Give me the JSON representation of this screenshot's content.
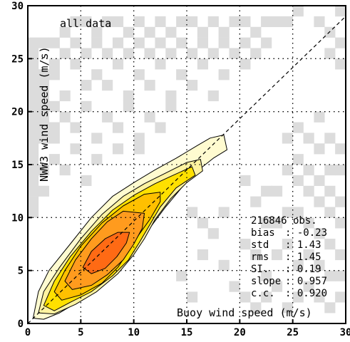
{
  "chart_data": {
    "type": "heatmap",
    "title": "",
    "annotation": "all data",
    "xlabel": "Buoy wind speed (m/s)",
    "ylabel": "NWW3 wind speed (m/s)",
    "xlim": [
      0,
      30
    ],
    "ylim": [
      0,
      30
    ],
    "x_ticks": [
      0,
      5,
      10,
      15,
      20,
      25,
      30
    ],
    "y_ticks": [
      0,
      5,
      10,
      15,
      20,
      25,
      30
    ],
    "grid": true,
    "reference_line": [
      [
        0,
        0
      ],
      [
        30,
        29
      ]
    ],
    "colors": {
      "sparse_cells": "#dcdcdc",
      "levels": [
        "#fffbd0",
        "#fff3a0",
        "#ffe000",
        "#ffc000",
        "#ff9b1e",
        "#ff6a14"
      ]
    },
    "contours": [
      {
        "level": 1,
        "points": [
          [
            0.5,
            0.5
          ],
          [
            1,
            3
          ],
          [
            2,
            5
          ],
          [
            4,
            7.5
          ],
          [
            6,
            10
          ],
          [
            8,
            12
          ],
          [
            10,
            13.3
          ],
          [
            12,
            14.5
          ],
          [
            14,
            15.6
          ],
          [
            16,
            16.8
          ],
          [
            17.2,
            17.5
          ],
          [
            18.5,
            17.8
          ],
          [
            18.8,
            16.4
          ],
          [
            17.5,
            15.6
          ],
          [
            16,
            14.4
          ],
          [
            14.5,
            12.8
          ],
          [
            13,
            11
          ],
          [
            11.5,
            9
          ],
          [
            10.5,
            7.5
          ],
          [
            9,
            5.5
          ],
          [
            7,
            3.5
          ],
          [
            5,
            2.2
          ],
          [
            3,
            1
          ],
          [
            1.5,
            0.4
          ]
        ]
      },
      {
        "level": 2,
        "points": [
          [
            1,
            1
          ],
          [
            1.5,
            3
          ],
          [
            3,
            5.3
          ],
          [
            5,
            8
          ],
          [
            7,
            10.3
          ],
          [
            9,
            12
          ],
          [
            11,
            13.2
          ],
          [
            13,
            14.2
          ],
          [
            15,
            15.2
          ],
          [
            16.3,
            15.5
          ],
          [
            16.5,
            14.4
          ],
          [
            15,
            13.3
          ],
          [
            13.5,
            11.8
          ],
          [
            12,
            9.8
          ],
          [
            11,
            8
          ],
          [
            10,
            6.5
          ],
          [
            8.5,
            4.7
          ],
          [
            6.5,
            3
          ],
          [
            4.5,
            1.8
          ],
          [
            2.5,
            0.9
          ]
        ]
      },
      {
        "level": 3,
        "points": [
          [
            1.5,
            1.7
          ],
          [
            2.5,
            4
          ],
          [
            4,
            6.3
          ],
          [
            6,
            8.7
          ],
          [
            8,
            10.7
          ],
          [
            10,
            12.1
          ],
          [
            12,
            13.2
          ],
          [
            13.5,
            13.9
          ],
          [
            15.5,
            14.8
          ],
          [
            15.8,
            14
          ],
          [
            14,
            12.8
          ],
          [
            12.5,
            11
          ],
          [
            11.5,
            9.3
          ],
          [
            10.5,
            7.6
          ],
          [
            9.5,
            6
          ],
          [
            8,
            4.5
          ],
          [
            6,
            3
          ],
          [
            4,
            2
          ],
          [
            2.5,
            1.2
          ]
        ]
      },
      {
        "level": 4,
        "points": [
          [
            2.5,
            3
          ],
          [
            3.5,
            5
          ],
          [
            5,
            7.3
          ],
          [
            7,
            9.5
          ],
          [
            9,
            11.1
          ],
          [
            11,
            12.2
          ],
          [
            12.5,
            12.4
          ],
          [
            12.5,
            11.5
          ],
          [
            11.5,
            9.8
          ],
          [
            10.5,
            8.4
          ],
          [
            9.5,
            6.8
          ],
          [
            8.5,
            5.3
          ],
          [
            7,
            3.8
          ],
          [
            5,
            2.7
          ],
          [
            3.2,
            2.2
          ]
        ]
      },
      {
        "level": 5,
        "points": [
          [
            3.5,
            4
          ],
          [
            4.5,
            6
          ],
          [
            6,
            8
          ],
          [
            7.5,
            9.6
          ],
          [
            9,
            10.6
          ],
          [
            11,
            10.4
          ],
          [
            10.8,
            9
          ],
          [
            10,
            7.5
          ],
          [
            9,
            6
          ],
          [
            7.5,
            4.6
          ],
          [
            6,
            3.6
          ],
          [
            4.2,
            3.2
          ]
        ]
      },
      {
        "level": 6,
        "points": [
          [
            5.2,
            5.3
          ],
          [
            6,
            6.8
          ],
          [
            7.3,
            8
          ],
          [
            8.5,
            8.6
          ],
          [
            9.6,
            8.6
          ],
          [
            9.3,
            7.6
          ],
          [
            8.4,
            6.3
          ],
          [
            7.3,
            5.2
          ],
          [
            6,
            4.7
          ]
        ]
      }
    ],
    "sparse_cells": [
      [
        0,
        26,
        0.9
      ],
      [
        0,
        25,
        0.8
      ],
      [
        1,
        26,
        0.9
      ],
      [
        0,
        24,
        0.7
      ],
      [
        0,
        23,
        0.7
      ],
      [
        1,
        23,
        0.6
      ],
      [
        0,
        22,
        0.6
      ],
      [
        1,
        22,
        0.6
      ],
      [
        2,
        23,
        0.5
      ],
      [
        0,
        21,
        0.5
      ],
      [
        1,
        21,
        0.5
      ],
      [
        0,
        20,
        0.4
      ],
      [
        1,
        20,
        0.4
      ],
      [
        2,
        20,
        0.4
      ],
      [
        3,
        21,
        0.4
      ],
      [
        0,
        19,
        0.4
      ],
      [
        1,
        19,
        0.4
      ],
      [
        0,
        18,
        0.4
      ],
      [
        1,
        18,
        0.4
      ],
      [
        2,
        18,
        0.3
      ],
      [
        0,
        17,
        0.3
      ],
      [
        1,
        17,
        0.3
      ],
      [
        0,
        16,
        0.3
      ],
      [
        0,
        15,
        0.3
      ],
      [
        0,
        14,
        0.2
      ],
      [
        0,
        13,
        0.2
      ],
      [
        0,
        12,
        0.2
      ],
      [
        1,
        12,
        0.2
      ],
      [
        0,
        11,
        0.2
      ],
      [
        0,
        10,
        0.1
      ],
      [
        3,
        27,
        0.5
      ],
      [
        4,
        28,
        0.5
      ],
      [
        5,
        28,
        0.5
      ],
      [
        6,
        27,
        0.5
      ],
      [
        7,
        28,
        0.5
      ],
      [
        8,
        28,
        0.5
      ],
      [
        9,
        27,
        0.5
      ],
      [
        10,
        28,
        0.5
      ],
      [
        11,
        27,
        0.5
      ],
      [
        12,
        28,
        0.5
      ],
      [
        13,
        27,
        0.5
      ],
      [
        14,
        28,
        0.4
      ],
      [
        15,
        28,
        0.4
      ],
      [
        16,
        27,
        0.4
      ],
      [
        17,
        28,
        0.4
      ],
      [
        18,
        27,
        0.4
      ],
      [
        19,
        28,
        0.4
      ],
      [
        20,
        28,
        0.4
      ],
      [
        21,
        27,
        0.4
      ],
      [
        22,
        28,
        0.4
      ],
      [
        23,
        28,
        0.4
      ],
      [
        24,
        28,
        0.4
      ],
      [
        25,
        29,
        0.4
      ],
      [
        2,
        26,
        0.5
      ],
      [
        3,
        25,
        0.4
      ],
      [
        4,
        26,
        0.4
      ],
      [
        5,
        25,
        0.4
      ],
      [
        6,
        26,
        0.4
      ],
      [
        7,
        25,
        0.4
      ],
      [
        8,
        26,
        0.4
      ],
      [
        9,
        25,
        0.4
      ],
      [
        10,
        26,
        0.4
      ],
      [
        11,
        25,
        0.4
      ],
      [
        12,
        26,
        0.3
      ],
      [
        13,
        25,
        0.3
      ],
      [
        14,
        26,
        0.3
      ],
      [
        15,
        25,
        0.3
      ],
      [
        16,
        26,
        0.3
      ],
      [
        17,
        25,
        0.3
      ],
      [
        18,
        26,
        0.3
      ],
      [
        19,
        25,
        0.3
      ],
      [
        20,
        26,
        0.3
      ],
      [
        21,
        25,
        0.3
      ],
      [
        22,
        26,
        0.3
      ],
      [
        4,
        24,
        0.4
      ],
      [
        6,
        23,
        0.4
      ],
      [
        8,
        24,
        0.4
      ],
      [
        10,
        23,
        0.3
      ],
      [
        12,
        24,
        0.3
      ],
      [
        14,
        23,
        0.3
      ],
      [
        16,
        24,
        0.3
      ],
      [
        18,
        23,
        0.3
      ],
      [
        20,
        24,
        0.3
      ],
      [
        2,
        24,
        0.4
      ],
      [
        5,
        22,
        0.3
      ],
      [
        7,
        22,
        0.3
      ],
      [
        9,
        21,
        0.3
      ],
      [
        11,
        22,
        0.3
      ],
      [
        13,
        21,
        0.3
      ],
      [
        15,
        22,
        0.3
      ],
      [
        17,
        21,
        0.3
      ],
      [
        3,
        19,
        0.3
      ],
      [
        5,
        20,
        0.3
      ],
      [
        7,
        19,
        0.3
      ],
      [
        9,
        20,
        0.3
      ],
      [
        11,
        19,
        0.3
      ],
      [
        13,
        20,
        0.3
      ],
      [
        2,
        17,
        0.3
      ],
      [
        4,
        18,
        0.3
      ],
      [
        6,
        17,
        0.3
      ],
      [
        8,
        18,
        0.3
      ],
      [
        10,
        17,
        0.3
      ],
      [
        12,
        18,
        0.3
      ],
      [
        2,
        15,
        0.2
      ],
      [
        4,
        16,
        0.2
      ],
      [
        6,
        15,
        0.2
      ],
      [
        8,
        16,
        0.2
      ],
      [
        10,
        16,
        0.2
      ],
      [
        3,
        14,
        0.2
      ],
      [
        5,
        13,
        0.2
      ],
      [
        1,
        14,
        0.2
      ],
      [
        29,
        29,
        0.5
      ],
      [
        28,
        27,
        0.4
      ],
      [
        29,
        26,
        0.4
      ],
      [
        29,
        24,
        0.4
      ],
      [
        28,
        25,
        0.4
      ],
      [
        27,
        28,
        0.3
      ],
      [
        15,
        10,
        0.2
      ],
      [
        16,
        9,
        0.2
      ],
      [
        17,
        8,
        0.2
      ],
      [
        16,
        6,
        0.2
      ],
      [
        18,
        10,
        0.2
      ],
      [
        14,
        4,
        0.2
      ],
      [
        15,
        2,
        0.2
      ],
      [
        19,
        3,
        0.2
      ],
      [
        18,
        5,
        0.2
      ],
      [
        20,
        7,
        0.2
      ],
      [
        21,
        11,
        0.2
      ],
      [
        22,
        12,
        0.2
      ],
      [
        20,
        13,
        0.2
      ],
      [
        23,
        9,
        0.2
      ],
      [
        24,
        14,
        0.2
      ],
      [
        25,
        15,
        0.3
      ],
      [
        25,
        13,
        0.3
      ],
      [
        26,
        14,
        0.3
      ],
      [
        26,
        12,
        0.3
      ],
      [
        27,
        13,
        0.3
      ],
      [
        27,
        11,
        0.3
      ],
      [
        28,
        12,
        0.3
      ],
      [
        28,
        10,
        0.3
      ],
      [
        29,
        11,
        0.3
      ],
      [
        29,
        9,
        0.3
      ],
      [
        25,
        10,
        0.3
      ],
      [
        26,
        9,
        0.3
      ],
      [
        27,
        8,
        0.3
      ],
      [
        28,
        7,
        0.3
      ],
      [
        29,
        6,
        0.3
      ],
      [
        29,
        4,
        0.3
      ],
      [
        28,
        4,
        0.3
      ],
      [
        29,
        2,
        0.3
      ],
      [
        28,
        1,
        0.3
      ],
      [
        27,
        2,
        0.3
      ],
      [
        26,
        3,
        0.3
      ],
      [
        25,
        2,
        0.3
      ],
      [
        24,
        1,
        0.3
      ],
      [
        23,
        3,
        0.3
      ],
      [
        22,
        2,
        0.2
      ],
      [
        21,
        1,
        0.2
      ],
      [
        22,
        4,
        0.2
      ],
      [
        23,
        6,
        0.2
      ],
      [
        24,
        7,
        0.3
      ],
      [
        26,
        6,
        0.3
      ],
      [
        27,
        5,
        0.3
      ],
      [
        25,
        5,
        0.3
      ],
      [
        24,
        10,
        0.3
      ],
      [
        22,
        9,
        0.2
      ],
      [
        21,
        6,
        0.2
      ],
      [
        20,
        2,
        0.2
      ],
      [
        23,
        12,
        0.2
      ],
      [
        28,
        14,
        0.3
      ],
      [
        29,
        14,
        0.3
      ],
      [
        27,
        16,
        0.3
      ],
      [
        28,
        17,
        0.3
      ],
      [
        29,
        16,
        0.3
      ],
      [
        26,
        17,
        0.3
      ],
      [
        25,
        18,
        0.3
      ],
      [
        27,
        19,
        0.3
      ],
      [
        24,
        17,
        0.2
      ]
    ],
    "stats": [
      {
        "label": "216846 obs.",
        "value": ""
      },
      {
        "label": "bias",
        "value": ": -0.23"
      },
      {
        "label": "std",
        "value": ": 1.43"
      },
      {
        "label": "rms",
        "value": ": 1.45"
      },
      {
        "label": "SI.",
        "value": ": 0.19"
      },
      {
        "label": "slope",
        "value": ": 0.957"
      },
      {
        "label": "c.c.",
        "value": ": 0.920"
      }
    ]
  }
}
